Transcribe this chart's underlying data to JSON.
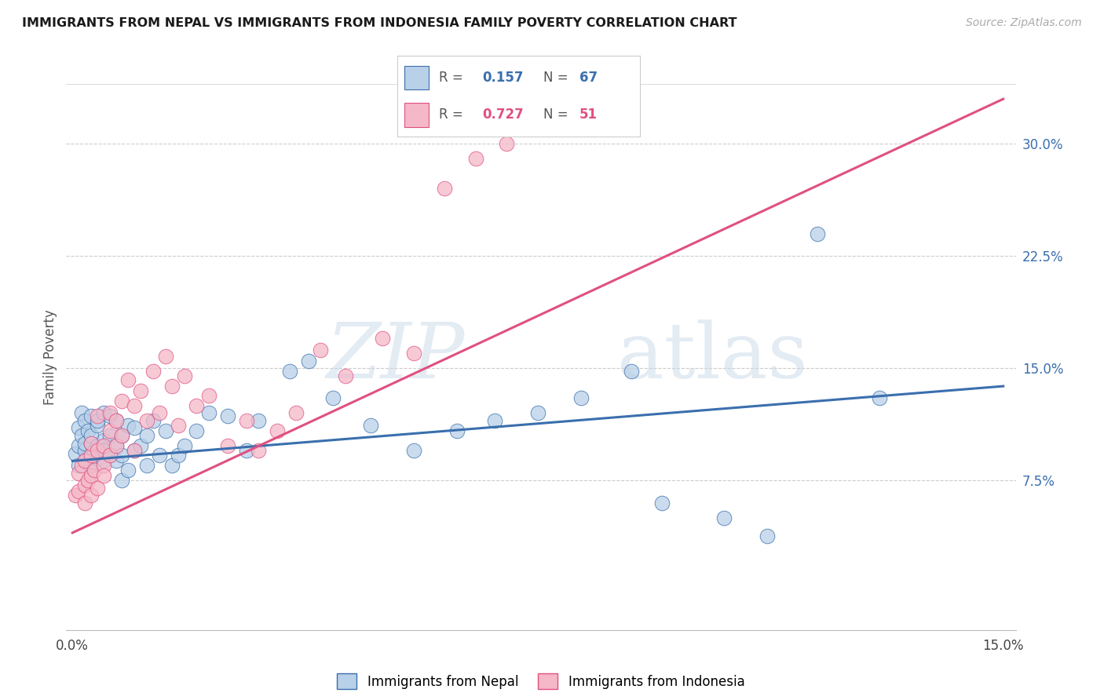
{
  "title": "IMMIGRANTS FROM NEPAL VS IMMIGRANTS FROM INDONESIA FAMILY POVERTY CORRELATION CHART",
  "source": "Source: ZipAtlas.com",
  "ylabel": "Family Poverty",
  "yticks": [
    0.075,
    0.15,
    0.225,
    0.3
  ],
  "ytick_labels": [
    "7.5%",
    "15.0%",
    "22.5%",
    "30.0%"
  ],
  "xlim": [
    -0.001,
    0.152
  ],
  "ylim": [
    -0.025,
    0.34
  ],
  "nepal_color": "#b8d0e8",
  "nepal_line_color": "#3a6fad",
  "indonesia_color": "#f4b8c8",
  "indonesia_line_color": "#e05080",
  "nepal_R": 0.157,
  "nepal_N": 67,
  "indonesia_R": 0.727,
  "indonesia_N": 51,
  "watermark_zip": "ZIP",
  "watermark_atlas": "atlas",
  "nepal_line_x": [
    0.0,
    0.15
  ],
  "nepal_line_y": [
    0.088,
    0.138
  ],
  "indonesia_line_x": [
    0.0,
    0.15
  ],
  "indonesia_line_y": [
    0.04,
    0.33
  ],
  "nepal_scatter_x": [
    0.0005,
    0.001,
    0.001,
    0.001,
    0.0015,
    0.0015,
    0.002,
    0.002,
    0.002,
    0.002,
    0.0025,
    0.003,
    0.003,
    0.003,
    0.003,
    0.003,
    0.0035,
    0.004,
    0.004,
    0.004,
    0.004,
    0.005,
    0.005,
    0.005,
    0.005,
    0.006,
    0.006,
    0.006,
    0.007,
    0.007,
    0.007,
    0.008,
    0.008,
    0.008,
    0.009,
    0.009,
    0.01,
    0.01,
    0.011,
    0.012,
    0.012,
    0.013,
    0.014,
    0.015,
    0.016,
    0.017,
    0.018,
    0.02,
    0.022,
    0.025,
    0.028,
    0.03,
    0.035,
    0.038,
    0.042,
    0.048,
    0.055,
    0.062,
    0.068,
    0.075,
    0.082,
    0.09,
    0.095,
    0.105,
    0.112,
    0.12,
    0.13
  ],
  "nepal_scatter_y": [
    0.093,
    0.11,
    0.098,
    0.085,
    0.12,
    0.105,
    0.115,
    0.095,
    0.088,
    0.1,
    0.108,
    0.118,
    0.1,
    0.092,
    0.085,
    0.105,
    0.095,
    0.112,
    0.098,
    0.09,
    0.115,
    0.12,
    0.102,
    0.088,
    0.095,
    0.118,
    0.105,
    0.092,
    0.115,
    0.098,
    0.088,
    0.105,
    0.092,
    0.075,
    0.112,
    0.082,
    0.11,
    0.095,
    0.098,
    0.105,
    0.085,
    0.115,
    0.092,
    0.108,
    0.085,
    0.092,
    0.098,
    0.108,
    0.12,
    0.118,
    0.095,
    0.115,
    0.148,
    0.155,
    0.13,
    0.112,
    0.095,
    0.108,
    0.115,
    0.12,
    0.13,
    0.148,
    0.06,
    0.05,
    0.038,
    0.24,
    0.13
  ],
  "indonesia_scatter_x": [
    0.0005,
    0.001,
    0.001,
    0.0015,
    0.002,
    0.002,
    0.002,
    0.0025,
    0.003,
    0.003,
    0.003,
    0.003,
    0.0035,
    0.004,
    0.004,
    0.004,
    0.005,
    0.005,
    0.005,
    0.006,
    0.006,
    0.006,
    0.007,
    0.007,
    0.008,
    0.008,
    0.009,
    0.01,
    0.01,
    0.011,
    0.012,
    0.013,
    0.014,
    0.015,
    0.016,
    0.017,
    0.018,
    0.02,
    0.022,
    0.025,
    0.028,
    0.03,
    0.033,
    0.036,
    0.04,
    0.044,
    0.05,
    0.055,
    0.06,
    0.065,
    0.07
  ],
  "indonesia_scatter_y": [
    0.065,
    0.08,
    0.068,
    0.085,
    0.072,
    0.088,
    0.06,
    0.075,
    0.078,
    0.092,
    0.065,
    0.1,
    0.082,
    0.095,
    0.118,
    0.07,
    0.098,
    0.085,
    0.078,
    0.108,
    0.12,
    0.092,
    0.115,
    0.098,
    0.128,
    0.105,
    0.142,
    0.125,
    0.095,
    0.135,
    0.115,
    0.148,
    0.12,
    0.158,
    0.138,
    0.112,
    0.145,
    0.125,
    0.132,
    0.098,
    0.115,
    0.095,
    0.108,
    0.12,
    0.162,
    0.145,
    0.17,
    0.16,
    0.27,
    0.29,
    0.3
  ]
}
